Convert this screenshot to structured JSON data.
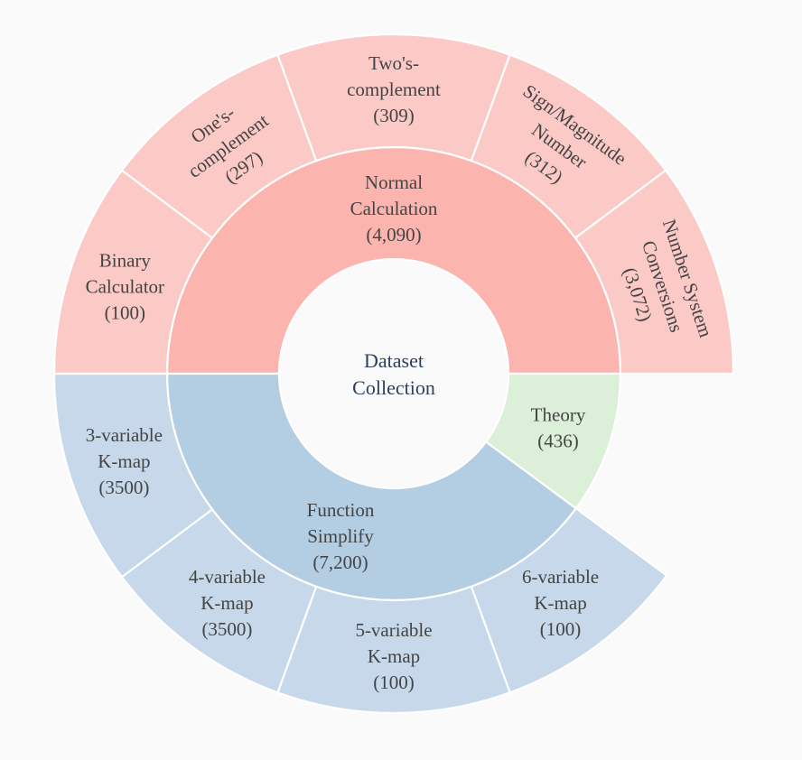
{
  "center": {
    "label_lines": [
      "Dataset",
      "Collection"
    ]
  },
  "colors": {
    "normal_inner": "#fbb4ae",
    "normal_outer": "#fbc9c6",
    "function_inner": "#b3cde3",
    "function_outer": "#c6d8e9",
    "theory_inner": "#dcefd8"
  },
  "groups": [
    {
      "id": "normal-calculation",
      "label_lines": [
        "Normal",
        "Calculation",
        "(4,090)"
      ],
      "value": 4090,
      "color_key": "normal_inner",
      "children": [
        {
          "id": "binary-calculator",
          "label_lines": [
            "Binary",
            "Calculator",
            "(100)"
          ],
          "value": 100,
          "color_key": "normal_outer"
        },
        {
          "id": "ones-complement",
          "label_lines": [
            "One's-",
            "complement",
            "(297)"
          ],
          "value": 297,
          "color_key": "normal_outer"
        },
        {
          "id": "twos-complement",
          "label_lines": [
            "Two's-",
            "complement",
            "(309)"
          ],
          "value": 309,
          "color_key": "normal_outer"
        },
        {
          "id": "sign-magnitude-number",
          "label_lines": [
            "Sign/Magnitude",
            "Number",
            "(312)"
          ],
          "value": 312,
          "color_key": "normal_outer"
        },
        {
          "id": "number-system-conversions",
          "label_lines": [
            "Number System",
            "Conversions",
            "(3,072)"
          ],
          "value": 3072,
          "color_key": "normal_outer"
        }
      ]
    },
    {
      "id": "theory",
      "label_lines": [
        "Theory",
        "(436)"
      ],
      "value": 436,
      "color_key": "theory_inner",
      "children": []
    },
    {
      "id": "function-simplify",
      "label_lines": [
        "Function",
        "Simplify",
        "(7,200)"
      ],
      "value": 7200,
      "color_key": "function_inner",
      "children": [
        {
          "id": "6-variable-kmap",
          "label_lines": [
            "6-variable",
            "K-map",
            "(100)"
          ],
          "value": 100,
          "color_key": "function_outer"
        },
        {
          "id": "5-variable-kmap",
          "label_lines": [
            "5-variable",
            "K-map",
            "(100)"
          ],
          "value": 100,
          "color_key": "function_outer"
        },
        {
          "id": "4-variable-kmap",
          "label_lines": [
            "4-variable",
            "K-map",
            "(3500)"
          ],
          "value": 3500,
          "color_key": "function_outer"
        },
        {
          "id": "3-variable-kmap",
          "label_lines": [
            "3-variable",
            "K-map",
            "(3500)"
          ],
          "value": 3500,
          "color_key": "function_outer"
        }
      ]
    }
  ]
}
